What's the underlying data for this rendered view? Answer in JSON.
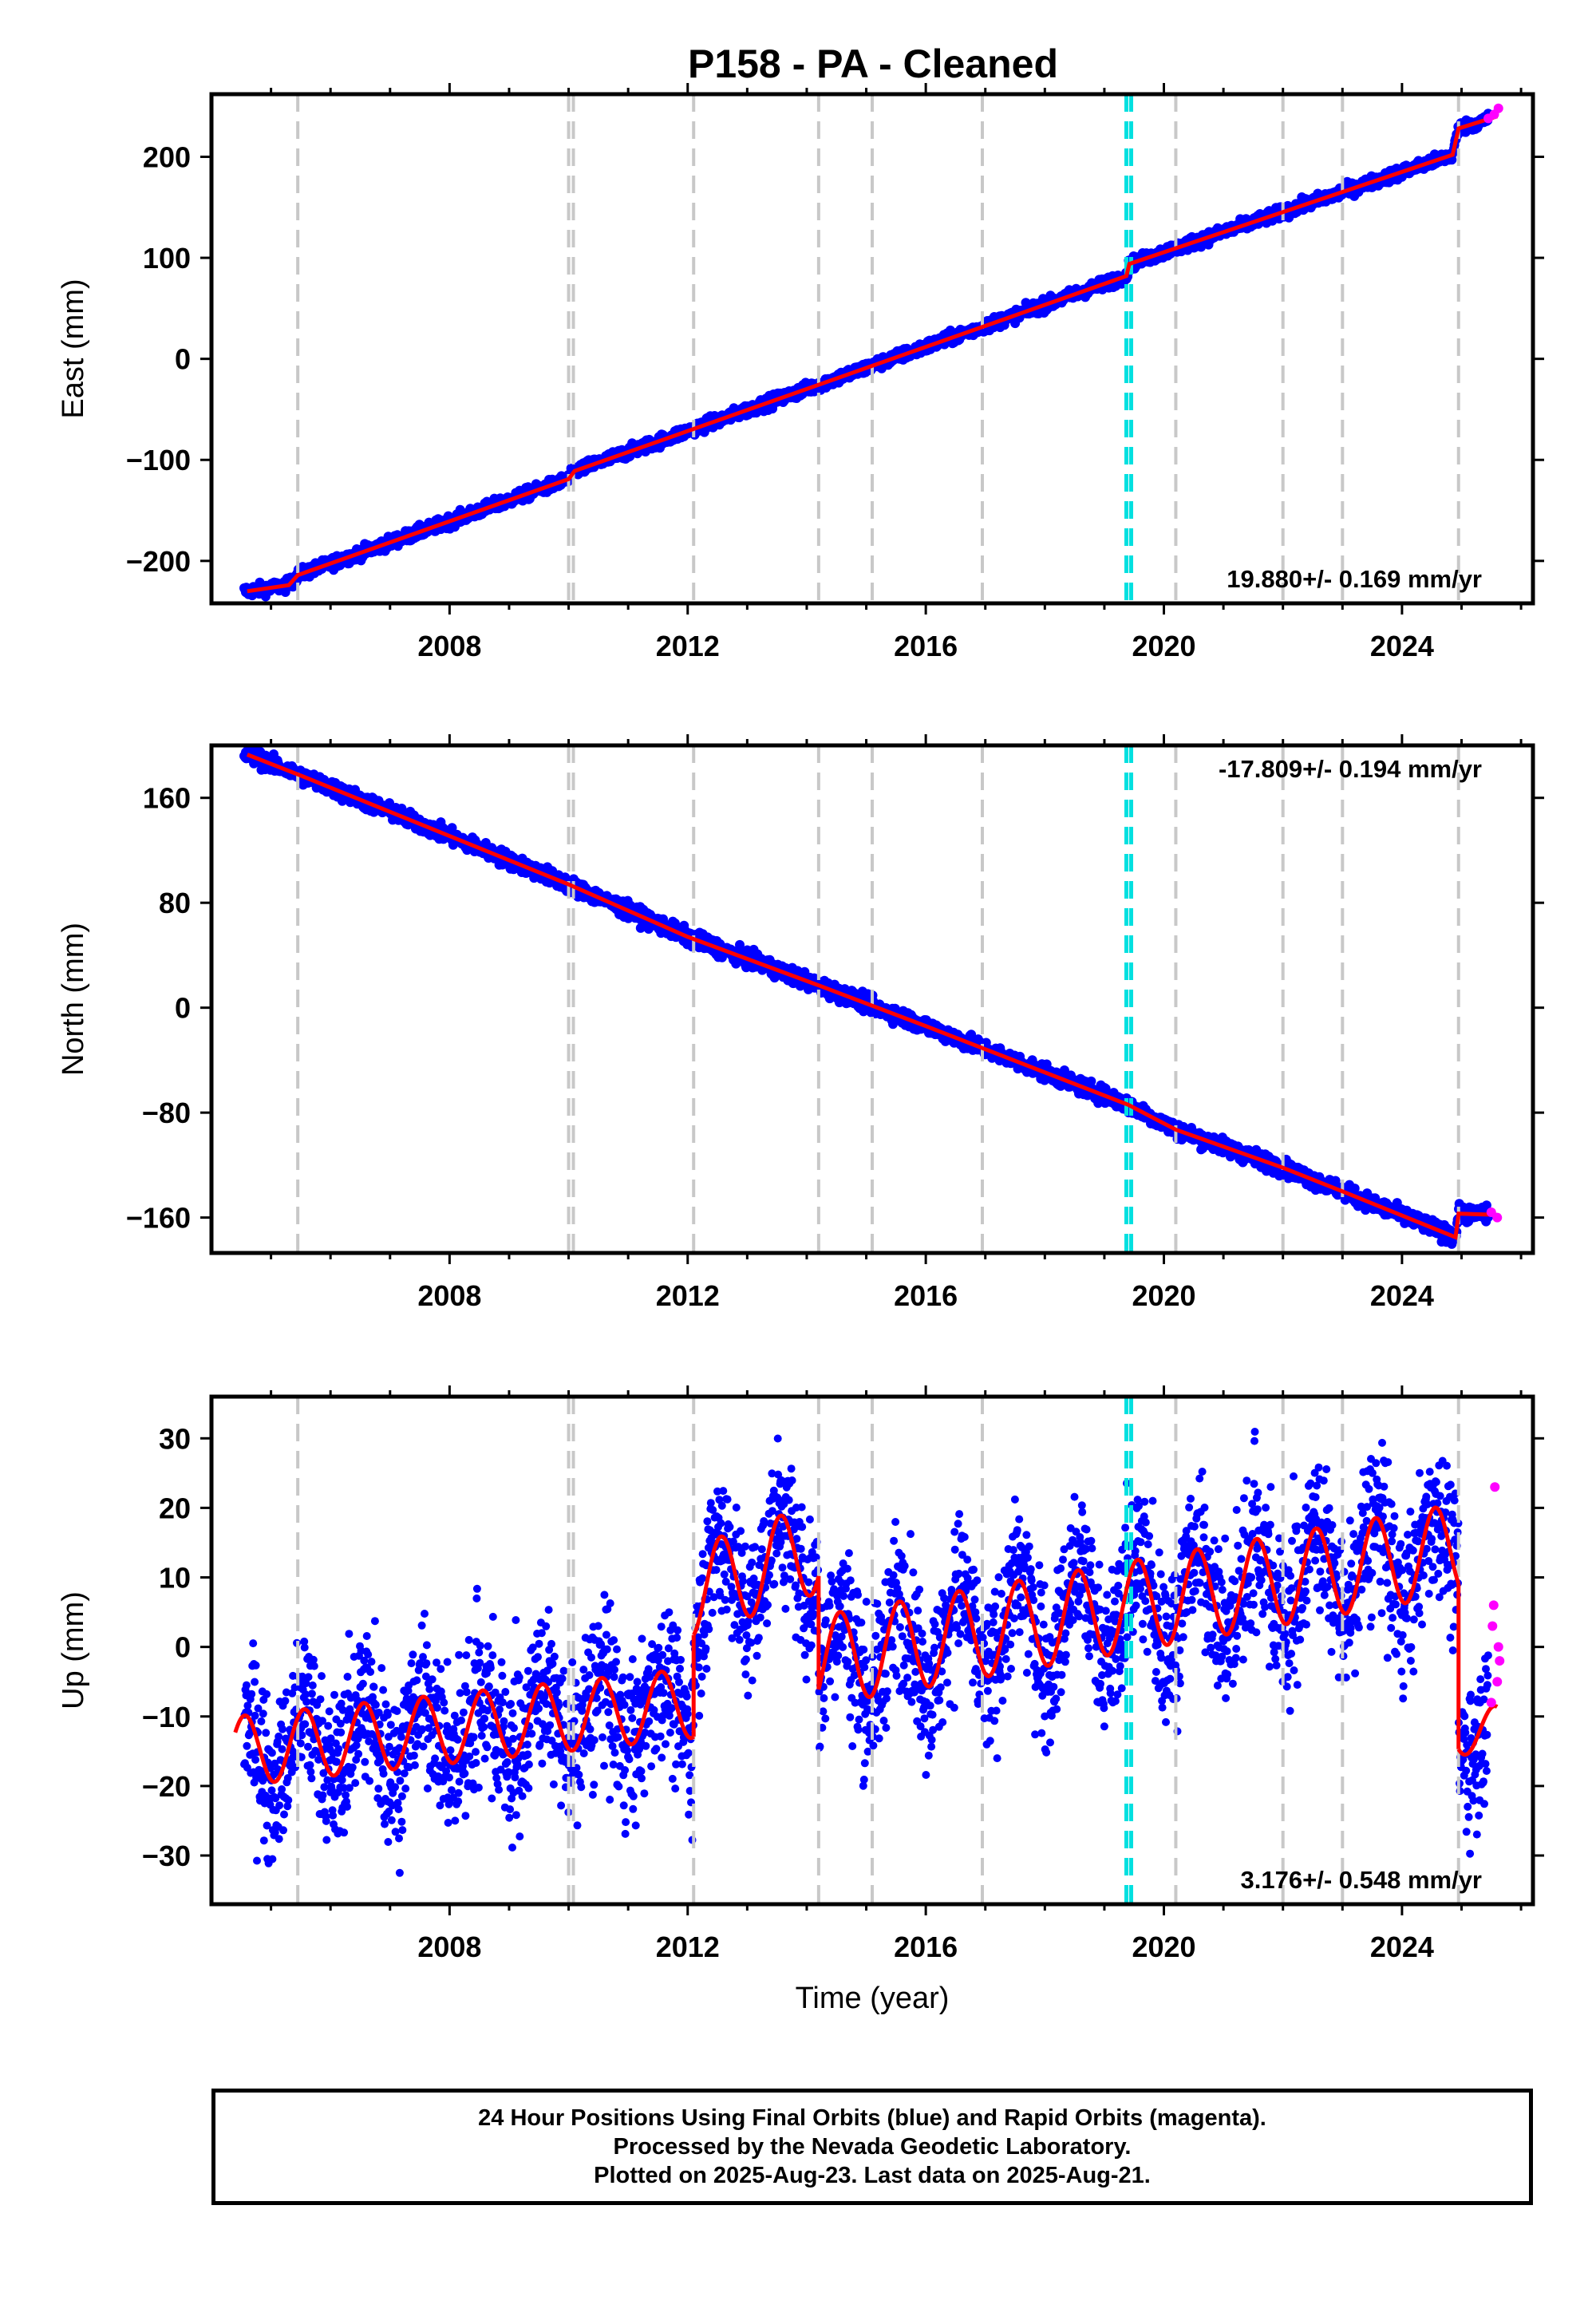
{
  "title": "P158  - PA - Cleaned",
  "chart_data": [
    {
      "type": "scatter",
      "ylabel": "East (mm)",
      "xlabel": "",
      "xlim": [
        2004.0,
        2026.2
      ],
      "ylim": [
        -242,
        262
      ],
      "xticks": [
        2008,
        2012,
        2016,
        2020,
        2024
      ],
      "yticks": [
        -200,
        -100,
        0,
        100,
        200
      ],
      "rate_label": "19.880+/- 0.169 mm/yr",
      "trend": [
        [
          2004.6,
          -230
        ],
        [
          2005.3,
          -224
        ],
        [
          2005.45,
          -214
        ],
        [
          2010.0,
          -119
        ],
        [
          2010.1,
          -111
        ],
        [
          2019.37,
          82
        ],
        [
          2019.42,
          94
        ],
        [
          2024.85,
          202
        ],
        [
          2024.95,
          228
        ],
        [
          2025.6,
          240
        ]
      ],
      "rapid_orbits": [
        [
          2025.45,
          238
        ],
        [
          2025.55,
          242
        ],
        [
          2025.62,
          248
        ]
      ]
    },
    {
      "type": "scatter",
      "ylabel": "North (mm)",
      "xlabel": "",
      "xlim": [
        2004.0,
        2026.2
      ],
      "ylim": [
        -187,
        200
      ],
      "xticks": [
        2008,
        2012,
        2016,
        2020,
        2024
      ],
      "yticks": [
        -160,
        -80,
        0,
        80,
        160
      ],
      "rate_label": "-17.809+/- 0.194 mm/yr",
      "trend": [
        [
          2004.6,
          193
        ],
        [
          2005.5,
          177
        ],
        [
          2010.0,
          94
        ],
        [
          2012.0,
          54
        ],
        [
          2014.2,
          17
        ],
        [
          2016.0,
          -14
        ],
        [
          2019.4,
          -74
        ],
        [
          2020.2,
          -93
        ],
        [
          2022.0,
          -122
        ],
        [
          2023.0,
          -140
        ],
        [
          2024.9,
          -175
        ],
        [
          2024.95,
          -157
        ],
        [
          2025.6,
          -158
        ]
      ],
      "rapid_orbits": [
        [
          2025.5,
          -156
        ],
        [
          2025.6,
          -160
        ]
      ]
    },
    {
      "type": "scatter",
      "ylabel": "Up (mm)",
      "xlabel": "Time (year)",
      "xlim": [
        2004.0,
        2026.2
      ],
      "ylim": [
        -37,
        36
      ],
      "xticks": [
        2008,
        2012,
        2016,
        2020,
        2024
      ],
      "yticks": [
        -30,
        -20,
        -10,
        0,
        10,
        20,
        30
      ],
      "rate_label": "3.176+/- 0.548 mm/yr",
      "trend_segments": [
        [
          2004.4,
          2012.1,
          -15,
          0.9,
          5
        ],
        [
          2012.1,
          2014.2,
          8,
          3.0,
          6.5
        ],
        [
          2014.2,
          2024.95,
          -2,
          1.5,
          6.5
        ],
        [
          2024.95,
          2025.6,
          -12,
          0,
          3.5
        ]
      ],
      "rapid_orbits": [
        [
          2025.5,
          -8
        ],
        [
          2025.52,
          3
        ],
        [
          2025.54,
          6
        ],
        [
          2025.56,
          23
        ],
        [
          2025.6,
          -5
        ],
        [
          2025.62,
          0
        ],
        [
          2025.64,
          -2
        ]
      ]
    }
  ],
  "offset_lines": {
    "gray": [
      2005.45,
      2010.0,
      2010.08,
      2012.1,
      2014.2,
      2015.1,
      2016.95,
      2020.2,
      2022.0,
      2023.0,
      2024.95
    ],
    "cyan": [
      2019.37,
      2019.45
    ]
  },
  "colors": {
    "final_orbits": "#0000ff",
    "rapid_orbits": "#ff00ff",
    "model": "#ff0000",
    "offset_equipment": "#c8c8c8",
    "offset_earthquake": "#00e0e0"
  },
  "footer": {
    "line1": "24 Hour Positions Using Final Orbits (blue) and Rapid Orbits (magenta).",
    "line2": "Processed by the Nevada Geodetic Laboratory.",
    "line3": "Plotted on 2025-Aug-23. Last data on 2025-Aug-21."
  }
}
